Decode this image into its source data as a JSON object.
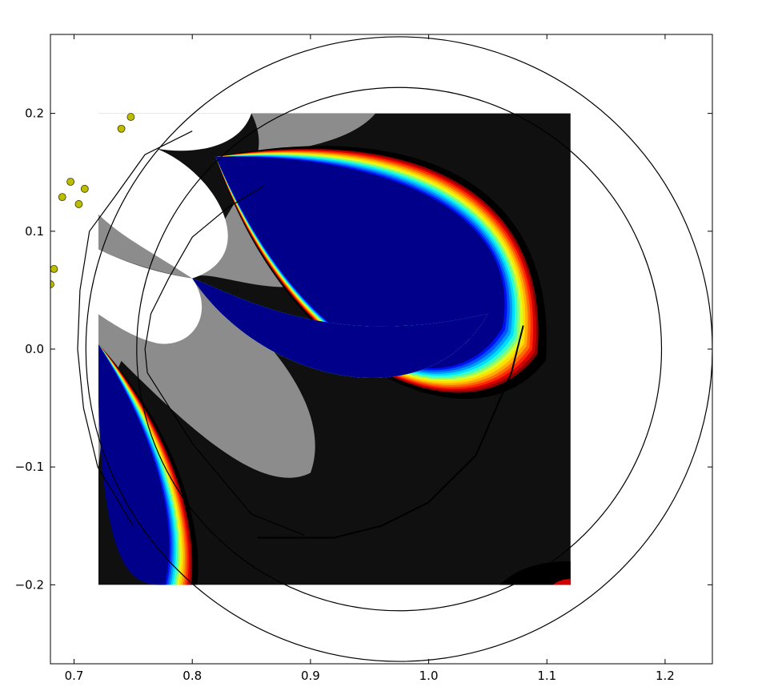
{
  "chart_data": {
    "type": "heatmap",
    "title": "",
    "xlabel": "",
    "ylabel": "",
    "xlim": [
      0.68,
      1.24
    ],
    "ylim": [
      -0.267,
      0.267
    ],
    "grid": false,
    "x_ticks": [
      0.7,
      0.8,
      0.9,
      1.0,
      1.1,
      1.2
    ],
    "x_tick_labels": [
      "0.7",
      "0.8",
      "0.9",
      "1.0",
      "1.1",
      "1.2"
    ],
    "y_ticks": [
      0.2,
      0.1,
      0.0,
      -0.1,
      -0.2
    ],
    "y_tick_labels": [
      "0.2",
      "0.1",
      "0.0",
      "−0.1",
      "−0.2"
    ],
    "field_extent": {
      "x": [
        0.72,
        1.12
      ],
      "y": [
        -0.2,
        0.2
      ]
    },
    "colormap": [
      "#8b0000",
      "#d40000",
      "#ff2a00",
      "#ff6a00",
      "#ffaa00",
      "#ffdd00",
      "#ddff22",
      "#88ff77",
      "#33ffcc",
      "#00ddff",
      "#0099ff",
      "#0055ff",
      "#0011ee",
      "#00008b"
    ],
    "region_colors": {
      "background": "#101010",
      "gray_region": "#8c8c8c",
      "white_region": "#ffffff",
      "rim": "#000000",
      "circle_line": "#000000"
    },
    "circles": [
      {
        "name": "outer-circle",
        "center": [
          0.975,
          0.0
        ],
        "radius": 0.265
      },
      {
        "name": "inner-circle",
        "center": [
          0.975,
          0.0
        ],
        "radius": 0.222
      }
    ],
    "small_circle": {
      "name": "small-circle",
      "center": [
        0.96,
        0.0
      ],
      "radius": 0.12
    },
    "polyline_curves": [
      {
        "name": "outer-polygon-curve",
        "points": [
          [
            0.8,
            0.185
          ],
          [
            0.76,
            0.165
          ],
          [
            0.735,
            0.13
          ],
          [
            0.713,
            0.1
          ],
          [
            0.705,
            0.05
          ],
          [
            0.703,
            0.0
          ],
          [
            0.708,
            -0.05
          ],
          [
            0.72,
            -0.1
          ],
          [
            0.75,
            -0.15
          ]
        ]
      },
      {
        "name": "inner-polygon-curve",
        "points": [
          [
            0.86,
            0.138
          ],
          [
            0.83,
            0.12
          ],
          [
            0.8,
            0.095
          ],
          [
            0.78,
            0.06
          ],
          [
            0.765,
            0.03
          ],
          [
            0.76,
            0.0
          ],
          [
            0.762,
            -0.02
          ],
          [
            0.8,
            -0.08
          ],
          [
            0.85,
            -0.14
          ],
          [
            0.895,
            -0.158
          ]
        ]
      },
      {
        "name": "arc-curve",
        "points": [
          [
            0.855,
            -0.16
          ],
          [
            0.92,
            -0.16
          ],
          [
            0.96,
            -0.15
          ],
          [
            1.0,
            -0.13
          ],
          [
            1.04,
            -0.09
          ],
          [
            1.07,
            -0.02
          ],
          [
            1.08,
            0.02
          ]
        ]
      }
    ],
    "points": [
      {
        "x": 0.748,
        "y": 0.197
      },
      {
        "x": 0.74,
        "y": 0.187
      },
      {
        "x": 0.697,
        "y": 0.142
      },
      {
        "x": 0.69,
        "y": 0.129
      },
      {
        "x": 0.709,
        "y": 0.136
      },
      {
        "x": 0.704,
        "y": 0.123
      },
      {
        "x": 0.683,
        "y": 0.068
      },
      {
        "x": 0.68,
        "y": 0.055
      }
    ],
    "point_color": "#bdbd00"
  }
}
